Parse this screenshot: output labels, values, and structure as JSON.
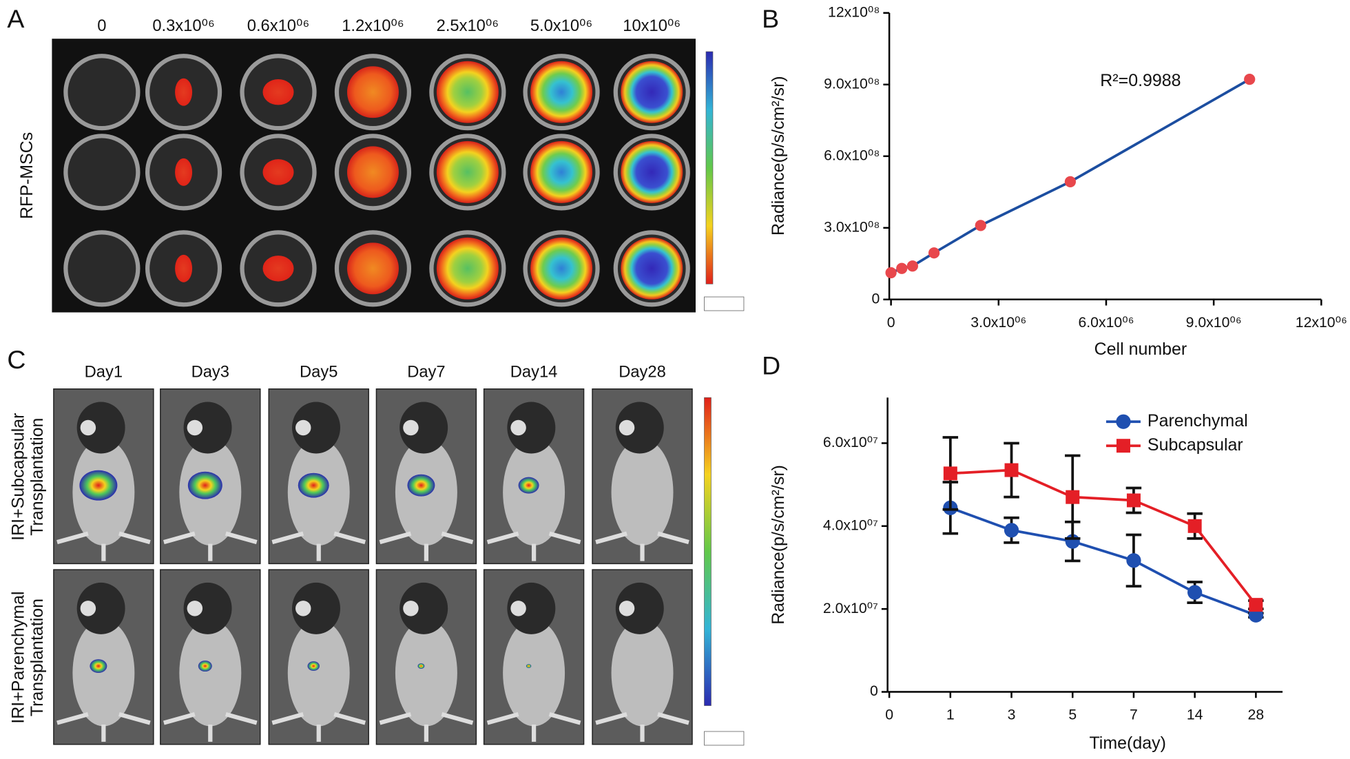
{
  "panel_a": {
    "letter": "A",
    "column_labels": [
      "0",
      "0.3x10⁰⁶",
      "0.6x10⁰⁶",
      "1.2x10⁰⁶",
      "2.5x10⁰⁶",
      "5.0x10⁰⁶",
      "10x10⁰⁶"
    ],
    "row_label": "RFP-MSCs"
  },
  "panel_c": {
    "letter": "C",
    "column_labels": [
      "Day1",
      "Day3",
      "Day5",
      "Day7",
      "Day14",
      "Day28"
    ],
    "row_labels": [
      [
        "IRI+Subcapsular",
        "Transplantation"
      ],
      [
        "IRI+Parenchymal",
        "Transplantation"
      ]
    ]
  },
  "chart_data": [
    {
      "type": "line",
      "panel_label": "B",
      "x": [
        0,
        300000,
        600000,
        1200000,
        2500000,
        5000000,
        10000000
      ],
      "values": [
        112000000,
        130000000,
        140000000,
        195000000,
        310000000,
        493000000,
        922000000
      ],
      "color": "#1c4ea0",
      "marker_color": "#e8474c",
      "xlabel": "Cell number",
      "ylabel": "Radiance(p/s/cm²/sr)",
      "annotation": "R²=0.9988",
      "xlim": [
        0,
        12000000
      ],
      "xticks": [
        0,
        {
          "value": 3000000,
          "label": "3.0x10⁰⁶"
        },
        {
          "value": 6000000,
          "label": "6.0x10⁰⁶"
        },
        {
          "value": 9000000,
          "label": "9.0x10⁰⁶"
        },
        {
          "value": 12000000,
          "label": "12x10⁰⁶"
        }
      ],
      "ylim": [
        0,
        1200000000
      ],
      "yticks": [
        0,
        {
          "value": 300000000,
          "label": "3.0x10⁰⁸"
        },
        {
          "value": 600000000,
          "label": "6.0x10⁰⁸"
        },
        {
          "value": 900000000,
          "label": "9.0x10⁰⁸"
        },
        {
          "value": 1200000000,
          "label": "12x10⁰⁸"
        }
      ]
    },
    {
      "type": "line",
      "panel_label": "D",
      "categories": [
        "0",
        "1",
        "3",
        "5",
        "7",
        "14",
        "28"
      ],
      "xlabel": "Time(day)",
      "ylabel": "Radiance(p/s/cm²/sr)",
      "legend": "upper right",
      "series": [
        {
          "name": "Parenchymal",
          "color": "#1f4fb0",
          "marker": "circle",
          "values": [
            null,
            44400000,
            39000000,
            36300000,
            31700000,
            24000000,
            18500000
          ],
          "errors": [
            null,
            6200000,
            3000000,
            4700000,
            6200000,
            2500000,
            500000
          ]
        },
        {
          "name": "Subcapsular",
          "color": "#e41f26",
          "marker": "square",
          "values": [
            null,
            52700000,
            53500000,
            47000000,
            46200000,
            40000000,
            21000000
          ],
          "errors": [
            null,
            8700000,
            6500000,
            10000000,
            3000000,
            3000000,
            1000000
          ]
        }
      ],
      "ylim": [
        0,
        71000000
      ],
      "yticks": [
        0,
        {
          "value": 20000000,
          "label": "2.0x10⁰⁷"
        },
        {
          "value": 40000000,
          "label": "4.0x10⁰⁷"
        },
        {
          "value": 60000000,
          "label": "6.0x10⁰⁷"
        }
      ]
    }
  ]
}
